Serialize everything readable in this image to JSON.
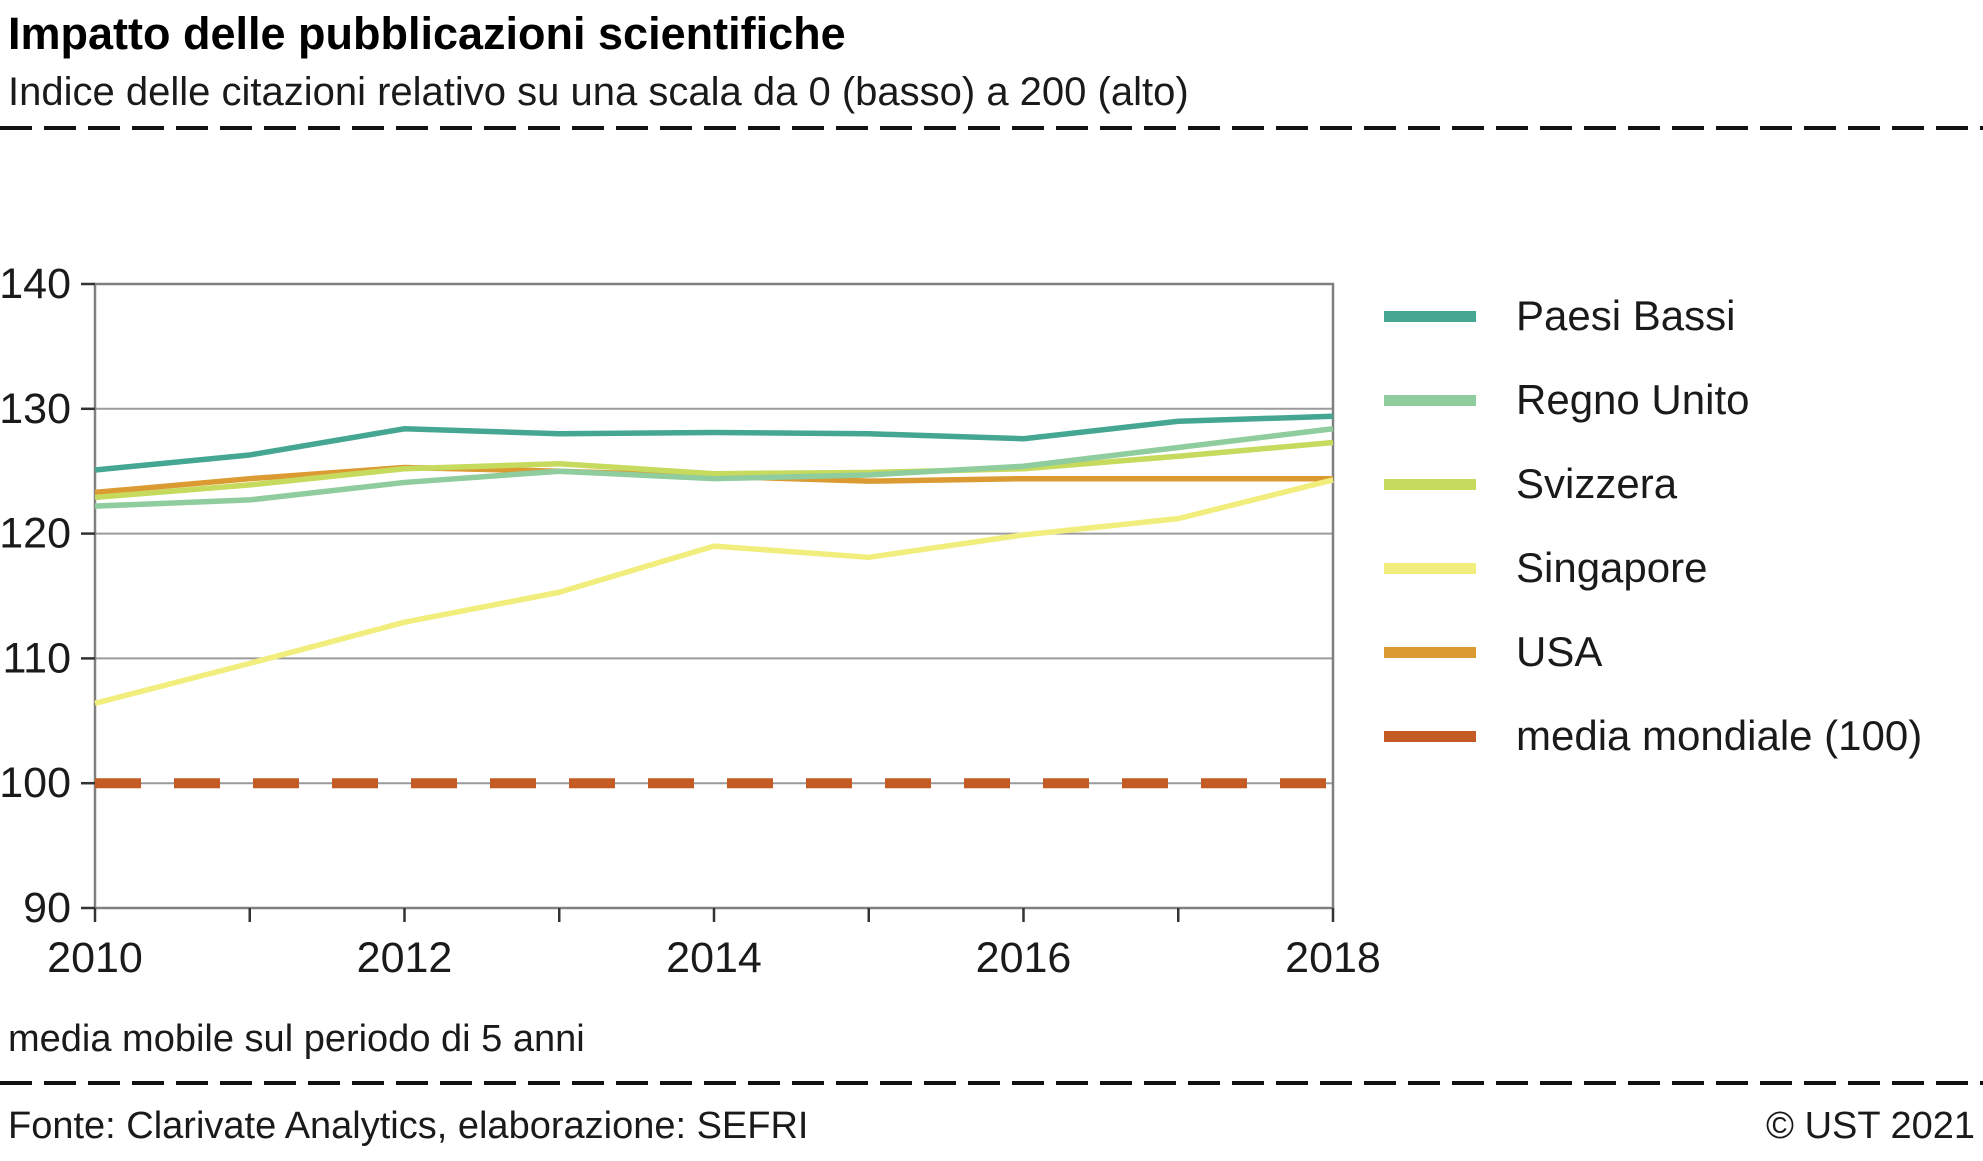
{
  "header": {
    "title": "Impatto delle pubblicazioni scientifiche",
    "subtitle": "Indice delle citazioni relativo su una scala da 0 (basso) a 200 (alto)"
  },
  "footnote": "media mobile sul periodo di 5 anni",
  "footer": {
    "source": "Fonte: Clarivate Analytics, elaborazione: SEFRI",
    "copyright": "© UST 2021"
  },
  "chart_data": {
    "type": "line",
    "x": [
      2010,
      2011,
      2012,
      2013,
      2014,
      2015,
      2016,
      2017,
      2018
    ],
    "x_ticks": [
      2010,
      2012,
      2014,
      2016,
      2018
    ],
    "ylim": [
      90,
      140
    ],
    "y_ticks": [
      90,
      100,
      110,
      120,
      130,
      140
    ],
    "grid": true,
    "legend_position": "right",
    "colors": {
      "grid": "#9b9b9b",
      "frame": "#808080",
      "axis_tick": "#333333"
    },
    "series": [
      {
        "name": "Paesi Bassi",
        "color": "#45a692",
        "dash": false,
        "width": 5.5,
        "values": [
          125.1,
          126.3,
          128.4,
          128.0,
          128.1,
          128.0,
          127.6,
          129.0,
          129.4
        ]
      },
      {
        "name": "Regno Unito",
        "color": "#8fcc9e",
        "dash": false,
        "width": 5.5,
        "values": [
          122.2,
          122.7,
          124.1,
          125.0,
          124.4,
          124.7,
          125.4,
          126.9,
          128.4
        ]
      },
      {
        "name": "Svizzera",
        "color": "#c6da5d",
        "dash": false,
        "width": 5.5,
        "values": [
          122.9,
          123.9,
          125.2,
          125.6,
          124.8,
          124.9,
          125.2,
          126.2,
          127.3
        ]
      },
      {
        "name": "Singapore",
        "color": "#f1ee7d",
        "dash": false,
        "width": 5.5,
        "values": [
          106.4,
          109.6,
          112.9,
          115.3,
          119.0,
          118.1,
          119.9,
          121.2,
          124.3
        ]
      },
      {
        "name": "USA",
        "color": "#db9a32",
        "dash": false,
        "width": 5.5,
        "values": [
          123.3,
          124.4,
          125.3,
          125.0,
          124.6,
          124.2,
          124.4,
          124.4,
          124.4
        ]
      },
      {
        "name": "media mondiale (100)",
        "color": "#c45a24",
        "dash": true,
        "width": 10,
        "values": [
          100,
          100,
          100,
          100,
          100,
          100,
          100,
          100,
          100
        ]
      }
    ]
  }
}
